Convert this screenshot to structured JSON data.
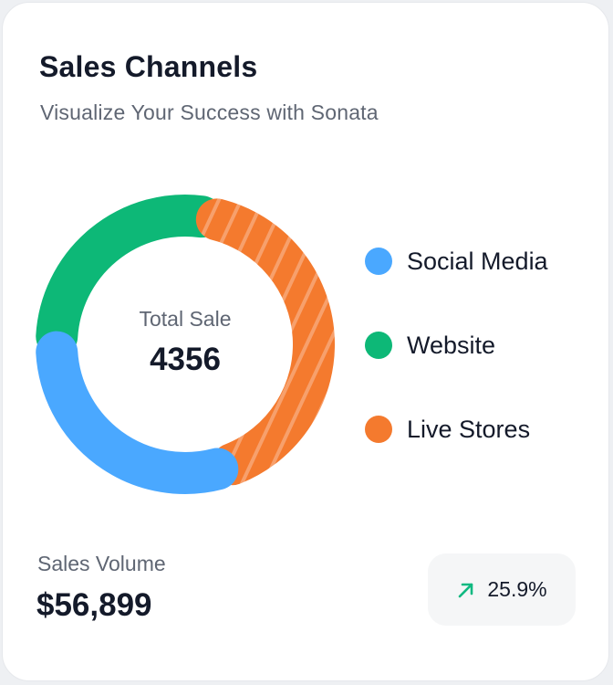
{
  "card": {
    "title": "Sales Channels",
    "subtitle": "Visualize Your Success with Sonata"
  },
  "chart_data": {
    "type": "pie",
    "center_label": "Total Sale",
    "center_value": "4356",
    "legend_placement": "right",
    "series": [
      {
        "name": "Social Media",
        "share": 0.3,
        "color": "#4aa8ff"
      },
      {
        "name": "Website",
        "share": 0.28,
        "color": "#0db877"
      },
      {
        "name": "Live Stores",
        "share": 0.42,
        "color": "#f47a2e",
        "pattern": "diagonal-stripes"
      }
    ]
  },
  "footer": {
    "volume_label": "Sales Volume",
    "volume_value": "$56,899",
    "trend_value": "25.9%",
    "trend_icon": "arrow-up-right-icon",
    "trend_color": "#10b981"
  }
}
